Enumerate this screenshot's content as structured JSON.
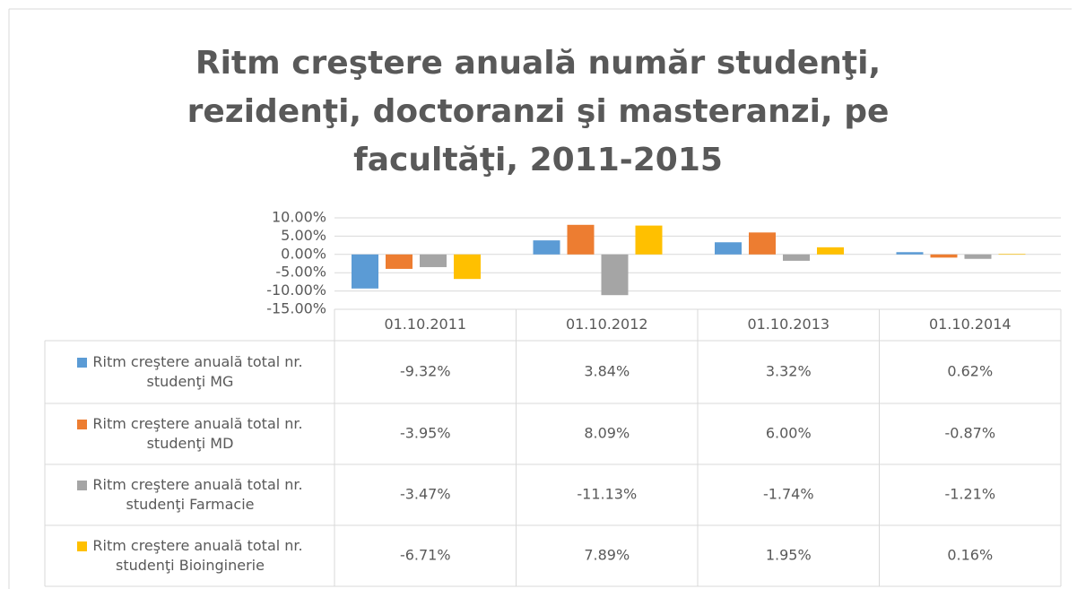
{
  "chart_data": {
    "type": "bar",
    "title": "Ritm creştere anuală număr studenţi, rezidenţi, doctoranzi şi masteranzi, pe facultăţi, 2011-2015",
    "categories": [
      "01.10.2011",
      "01.10.2012",
      "01.10.2013",
      "01.10.2014"
    ],
    "series": [
      {
        "name": "Ritm creştere anuală total nr. studenţi MG",
        "color": "#5b9bd5",
        "values": [
          -9.32,
          3.84,
          3.32,
          0.62
        ],
        "value_labels": [
          "-9.32%",
          "3.84%",
          "3.32%",
          "0.62%"
        ]
      },
      {
        "name": "Ritm creştere anuală total nr. studenţi MD",
        "color": "#ed7d31",
        "values": [
          -3.95,
          8.09,
          6.0,
          -0.87
        ],
        "value_labels": [
          "-3.95%",
          "8.09%",
          "6.00%",
          "-0.87%"
        ]
      },
      {
        "name": "Ritm creştere anuală total nr. studenţi Farmacie",
        "color": "#a5a5a5",
        "values": [
          -3.47,
          -11.13,
          -1.74,
          -1.21
        ],
        "value_labels": [
          "-3.47%",
          "-11.13%",
          "-1.74%",
          "-1.21%"
        ]
      },
      {
        "name": "Ritm creştere anuală total nr. studenţi Bioinginerie",
        "color": "#ffc000",
        "values": [
          -6.71,
          7.89,
          1.95,
          0.16
        ],
        "value_labels": [
          "-6.71%",
          "7.89%",
          "1.95%",
          "0.16%"
        ]
      }
    ],
    "ylim": [
      -15,
      10
    ],
    "yticks": [
      {
        "value": 10,
        "label": "10.00%"
      },
      {
        "value": 5,
        "label": "5.00%"
      },
      {
        "value": 0,
        "label": "0.00%"
      },
      {
        "value": -5,
        "label": "-5.00%"
      },
      {
        "value": -10,
        "label": "-10.00%"
      },
      {
        "value": -15,
        "label": "-15.00%"
      }
    ],
    "grid": true,
    "data_table": true
  }
}
